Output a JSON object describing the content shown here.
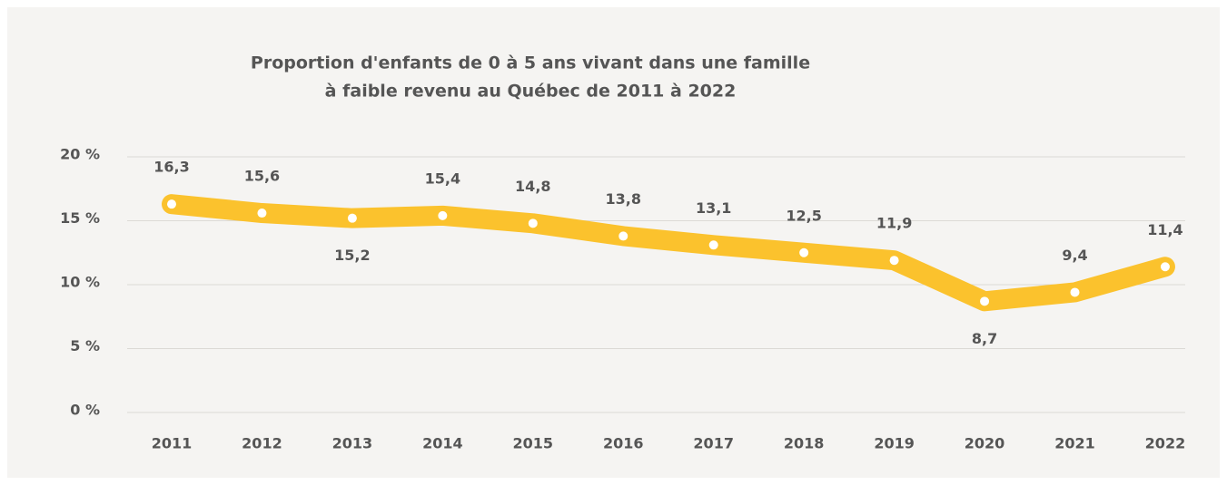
{
  "chart_data": {
    "type": "line",
    "title": [
      "Proportion d'enfants de 0 à 5 ans vivant dans une famille",
      "à faible revenu au Québec de 2011 à 2022"
    ],
    "categories": [
      "2011",
      "2012",
      "2013",
      "2014",
      "2015",
      "2016",
      "2017",
      "2018",
      "2019",
      "2020",
      "2021",
      "2022"
    ],
    "series": [
      {
        "name": "Proportion",
        "color": "#fbc22d",
        "values": [
          16.3,
          15.6,
          15.2,
          15.4,
          14.8,
          13.8,
          13.1,
          12.5,
          11.9,
          8.7,
          9.4,
          11.4
        ],
        "value_labels": [
          "16,3",
          "15,6",
          "15,2",
          "15,4",
          "14,8",
          "13,8",
          "13,1",
          "12,5",
          "11,9",
          "8,7",
          "9,4",
          "11,4"
        ]
      }
    ],
    "ylim": [
      0,
      20
    ],
    "yticks": [
      {
        "value": 0,
        "label": "0 %"
      },
      {
        "value": 5,
        "label": "5 %"
      },
      {
        "value": 10,
        "label": "10 %"
      },
      {
        "value": 15,
        "label": "15 %"
      },
      {
        "value": 20,
        "label": "20 %"
      }
    ],
    "grid": true
  }
}
